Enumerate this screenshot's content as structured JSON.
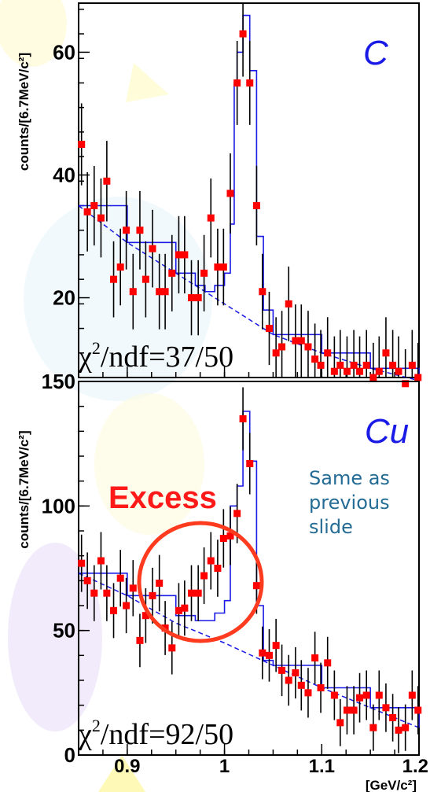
{
  "chart_data": [
    {
      "type": "scatter",
      "panel": "C",
      "ylabel": "counts/[6.7MeV/c²]",
      "ylim": [
        7,
        68
      ],
      "xlim": [
        0.85,
        1.2
      ],
      "yticks": [
        20,
        40,
        60
      ],
      "chi2_label": "χ²/ndf=37/50",
      "points": [
        {
          "x": 0.853,
          "y": 45
        },
        {
          "x": 0.859,
          "y": 34
        },
        {
          "x": 0.866,
          "y": 35
        },
        {
          "x": 0.873,
          "y": 33
        },
        {
          "x": 0.879,
          "y": 39
        },
        {
          "x": 0.886,
          "y": 23
        },
        {
          "x": 0.893,
          "y": 25
        },
        {
          "x": 0.899,
          "y": 31
        },
        {
          "x": 0.906,
          "y": 21
        },
        {
          "x": 0.913,
          "y": 31
        },
        {
          "x": 0.919,
          "y": 23
        },
        {
          "x": 0.926,
          "y": 28
        },
        {
          "x": 0.933,
          "y": 21
        },
        {
          "x": 0.939,
          "y": 21
        },
        {
          "x": 0.946,
          "y": 24
        },
        {
          "x": 0.953,
          "y": 27
        },
        {
          "x": 0.959,
          "y": 27
        },
        {
          "x": 0.966,
          "y": 20
        },
        {
          "x": 0.973,
          "y": 20
        },
        {
          "x": 0.979,
          "y": 24
        },
        {
          "x": 0.986,
          "y": 33
        },
        {
          "x": 0.993,
          "y": 25
        },
        {
          "x": 0.999,
          "y": 25
        },
        {
          "x": 1.006,
          "y": 37
        },
        {
          "x": 1.013,
          "y": 55
        },
        {
          "x": 1.019,
          "y": 63
        },
        {
          "x": 1.026,
          "y": 55
        },
        {
          "x": 1.033,
          "y": 35
        },
        {
          "x": 1.039,
          "y": 21
        },
        {
          "x": 1.046,
          "y": 15
        },
        {
          "x": 1.053,
          "y": 11
        },
        {
          "x": 1.059,
          "y": 12
        },
        {
          "x": 1.066,
          "y": 19
        },
        {
          "x": 1.073,
          "y": 13
        },
        {
          "x": 1.079,
          "y": 13
        },
        {
          "x": 1.086,
          "y": 12
        },
        {
          "x": 1.093,
          "y": 10
        },
        {
          "x": 1.099,
          "y": 9
        },
        {
          "x": 1.106,
          "y": 11
        },
        {
          "x": 1.113,
          "y": 8
        },
        {
          "x": 1.119,
          "y": 9
        },
        {
          "x": 1.126,
          "y": 8
        },
        {
          "x": 1.133,
          "y": 9
        },
        {
          "x": 1.139,
          "y": 8
        },
        {
          "x": 1.146,
          "y": 9
        },
        {
          "x": 1.153,
          "y": 7
        },
        {
          "x": 1.159,
          "y": 8
        },
        {
          "x": 1.166,
          "y": 11
        },
        {
          "x": 1.173,
          "y": 9
        },
        {
          "x": 1.179,
          "y": 8
        },
        {
          "x": 1.186,
          "y": 6
        },
        {
          "x": 1.193,
          "y": 9
        },
        {
          "x": 1.199,
          "y": 7
        }
      ],
      "error": 5,
      "fit_line": [
        [
          0.85,
          35
        ],
        [
          0.9,
          29
        ],
        [
          0.95,
          24
        ],
        [
          1.0,
          19
        ],
        [
          1.05,
          14
        ],
        [
          1.1,
          11
        ],
        [
          1.15,
          8.5
        ],
        [
          1.2,
          6.5
        ]
      ],
      "fit_histogram": [
        [
          0.85,
          35
        ],
        [
          0.9,
          29
        ],
        [
          0.95,
          24
        ],
        [
          0.97,
          22
        ],
        [
          0.98,
          21
        ],
        [
          0.99,
          22
        ],
        [
          1.0,
          24
        ],
        [
          1.006,
          32
        ],
        [
          1.01,
          55
        ],
        [
          1.013,
          60
        ],
        [
          1.019,
          66
        ],
        [
          1.026,
          57
        ],
        [
          1.033,
          30
        ],
        [
          1.04,
          18
        ],
        [
          1.05,
          14
        ],
        [
          1.1,
          11
        ],
        [
          1.15,
          8.5
        ],
        [
          1.2,
          6.5
        ]
      ]
    },
    {
      "type": "scatter",
      "panel": "Cu",
      "ylabel": "counts/[6.7MeV/c²]",
      "ylim": [
        0,
        150
      ],
      "xlim": [
        0.85,
        1.2
      ],
      "yticks": [
        0,
        50,
        100,
        150
      ],
      "xticks": [
        0.9,
        1,
        1.1,
        1.2
      ],
      "xlabel": "[GeV/c²]",
      "chi2_label": "χ²/ndf=92/50",
      "annotation": "Excess",
      "note": [
        "Same as",
        "previous",
        "slide"
      ],
      "points": [
        {
          "x": 0.853,
          "y": 77
        },
        {
          "x": 0.859,
          "y": 70
        },
        {
          "x": 0.866,
          "y": 65
        },
        {
          "x": 0.873,
          "y": 78
        },
        {
          "x": 0.879,
          "y": 65
        },
        {
          "x": 0.886,
          "y": 58
        },
        {
          "x": 0.893,
          "y": 71
        },
        {
          "x": 0.899,
          "y": 60
        },
        {
          "x": 0.906,
          "y": 67
        },
        {
          "x": 0.913,
          "y": 46
        },
        {
          "x": 0.919,
          "y": 56
        },
        {
          "x": 0.926,
          "y": 64
        },
        {
          "x": 0.933,
          "y": 69
        },
        {
          "x": 0.939,
          "y": 51
        },
        {
          "x": 0.946,
          "y": 43
        },
        {
          "x": 0.953,
          "y": 58
        },
        {
          "x": 0.959,
          "y": 59
        },
        {
          "x": 0.966,
          "y": 65
        },
        {
          "x": 0.973,
          "y": 65
        },
        {
          "x": 0.979,
          "y": 72
        },
        {
          "x": 0.986,
          "y": 78
        },
        {
          "x": 0.993,
          "y": 75
        },
        {
          "x": 0.999,
          "y": 87
        },
        {
          "x": 1.006,
          "y": 88
        },
        {
          "x": 1.013,
          "y": 97
        },
        {
          "x": 1.019,
          "y": 135
        },
        {
          "x": 1.026,
          "y": 117
        },
        {
          "x": 1.033,
          "y": 68
        },
        {
          "x": 1.039,
          "y": 41
        },
        {
          "x": 1.046,
          "y": 40
        },
        {
          "x": 1.053,
          "y": 44
        },
        {
          "x": 1.059,
          "y": 34
        },
        {
          "x": 1.066,
          "y": 30
        },
        {
          "x": 1.073,
          "y": 33
        },
        {
          "x": 1.079,
          "y": 28
        },
        {
          "x": 1.086,
          "y": 25
        },
        {
          "x": 1.093,
          "y": 39
        },
        {
          "x": 1.099,
          "y": 27
        },
        {
          "x": 1.106,
          "y": 37
        },
        {
          "x": 1.113,
          "y": 24
        },
        {
          "x": 1.119,
          "y": 13
        },
        {
          "x": 1.126,
          "y": 18
        },
        {
          "x": 1.133,
          "y": 18
        },
        {
          "x": 1.139,
          "y": 23
        },
        {
          "x": 1.146,
          "y": 24
        },
        {
          "x": 1.153,
          "y": 11
        },
        {
          "x": 1.159,
          "y": 24
        },
        {
          "x": 1.166,
          "y": 19
        },
        {
          "x": 1.173,
          "y": 15
        },
        {
          "x": 1.179,
          "y": 10
        },
        {
          "x": 1.186,
          "y": 11
        },
        {
          "x": 1.193,
          "y": 24
        },
        {
          "x": 1.199,
          "y": 18
        }
      ],
      "error": 8,
      "fit_line": [
        [
          0.85,
          73
        ],
        [
          0.9,
          64
        ],
        [
          0.95,
          53
        ],
        [
          1.0,
          45
        ],
        [
          1.05,
          36
        ],
        [
          1.1,
          27
        ],
        [
          1.15,
          19
        ],
        [
          1.2,
          11
        ]
      ],
      "fit_histogram": [
        [
          0.85,
          73
        ],
        [
          0.9,
          64
        ],
        [
          0.95,
          56
        ],
        [
          0.97,
          54
        ],
        [
          0.98,
          54
        ],
        [
          0.99,
          57
        ],
        [
          1.0,
          62
        ],
        [
          1.006,
          100
        ],
        [
          1.013,
          108
        ],
        [
          1.019,
          138
        ],
        [
          1.026,
          118
        ],
        [
          1.033,
          60
        ],
        [
          1.04,
          38
        ],
        [
          1.05,
          36
        ],
        [
          1.1,
          27
        ],
        [
          1.15,
          19
        ],
        [
          1.2,
          11
        ]
      ]
    }
  ],
  "colors": {
    "points": "#ff0000",
    "fit": "#1a1ae6",
    "circle": "#ff3b1f"
  }
}
